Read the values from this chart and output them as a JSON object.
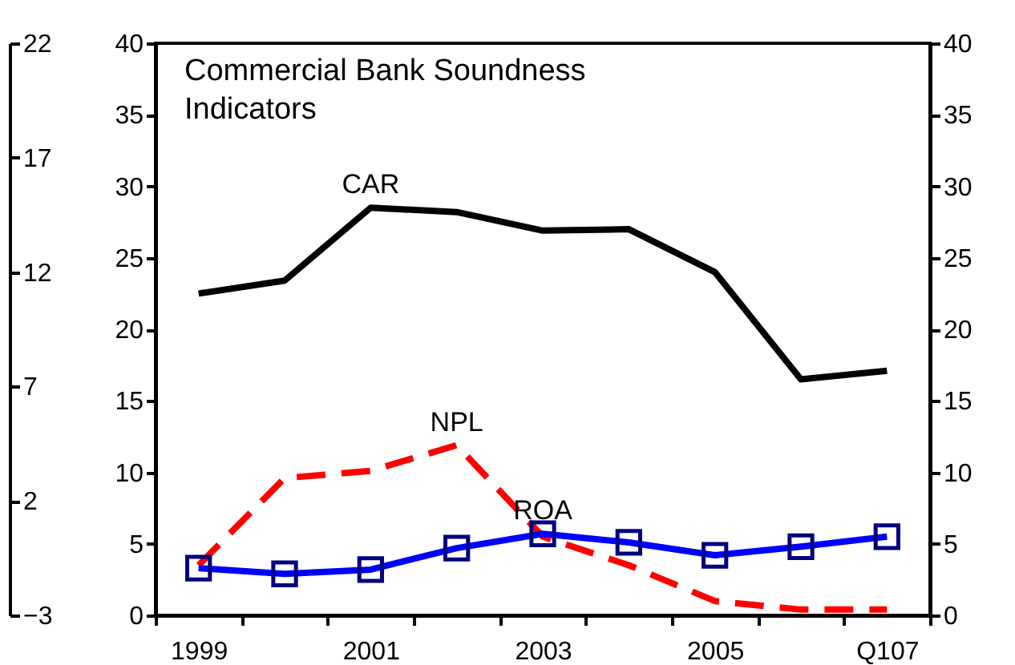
{
  "chart_data": {
    "type": "line",
    "title": "Commercial Bank Soundness Indicators",
    "categories": [
      "1999",
      null,
      "2001",
      null,
      "2003",
      null,
      "2005",
      null,
      "Q107"
    ],
    "series": [
      {
        "name": "CAR",
        "color": "#000000",
        "values": [
          22.5,
          23.4,
          28.5,
          28.2,
          26.9,
          27.0,
          24.0,
          16.5,
          17.1
        ]
      },
      {
        "name": "NPL",
        "color": "#ff0000",
        "line_style": "dashed",
        "values": [
          3.5,
          9.6,
          10.1,
          11.9,
          5.5,
          3.5,
          1.0,
          0.4,
          0.4
        ]
      },
      {
        "name": "ROA",
        "color": "#0000ff",
        "marker": "square",
        "values": [
          3.3,
          2.9,
          3.2,
          4.7,
          5.7,
          5.1,
          4.2,
          4.8,
          5.5
        ]
      }
    ],
    "ylim": [
      0,
      40
    ],
    "yticks": [
      0,
      5,
      10,
      15,
      20,
      25,
      30,
      35,
      40
    ],
    "y2lim": [
      0,
      40
    ],
    "y2ticks": [
      0,
      5,
      10,
      15,
      20,
      25,
      30,
      35,
      40
    ],
    "y3lim": [
      -3,
      22
    ],
    "y3ticks": [
      -3,
      2,
      7,
      12,
      17,
      22
    ],
    "grid": false,
    "legend": false
  }
}
